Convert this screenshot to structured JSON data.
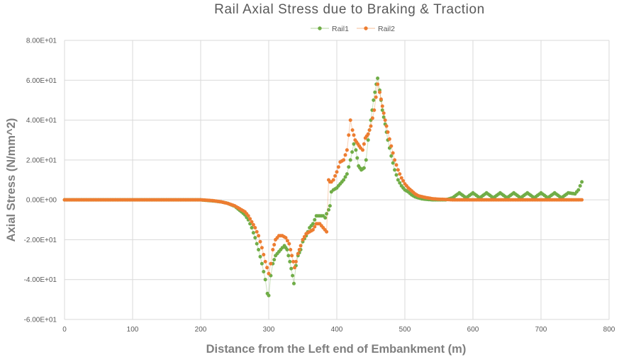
{
  "chart_data": {
    "type": "scatter",
    "title": "Rail Axial Stress due to Braking & Traction",
    "xlabel": "Distance from the Left end of Embankment (m)",
    "ylabel": "Axial Stress (N/mm^2)",
    "xlim": [
      0,
      800
    ],
    "ylim": [
      -60,
      80
    ],
    "xticks": [
      0,
      100,
      200,
      300,
      400,
      500,
      600,
      700,
      800
    ],
    "xtick_labels": [
      "0",
      "100",
      "200",
      "300",
      "400",
      "500",
      "600",
      "700",
      "800"
    ],
    "yticks": [
      -60,
      -40,
      -20,
      0,
      20,
      40,
      60,
      80
    ],
    "ytick_labels": [
      "-6.00E+01",
      "-4.00E+01",
      "-2.00E+01",
      "0.00E+00",
      "2.00E+01",
      "4.00E+01",
      "6.00E+01",
      "8.00E+01"
    ],
    "grid": "vertical and horizontal",
    "legend_position": "top-center",
    "series": [
      {
        "name": "Rail1",
        "color": "#70ad47",
        "points": [
          [
            0,
            0
          ],
          [
            20,
            0
          ],
          [
            40,
            0
          ],
          [
            60,
            0
          ],
          [
            80,
            0
          ],
          [
            100,
            0
          ],
          [
            120,
            0
          ],
          [
            140,
            0
          ],
          [
            160,
            0
          ],
          [
            180,
            0
          ],
          [
            200,
            0
          ],
          [
            210,
            -0.3
          ],
          [
            220,
            -0.6
          ],
          [
            230,
            -1
          ],
          [
            240,
            -1.8
          ],
          [
            250,
            -3.2
          ],
          [
            260,
            -6
          ],
          [
            265,
            -7.5
          ],
          [
            270,
            -10
          ],
          [
            275,
            -14
          ],
          [
            280,
            -19
          ],
          [
            285,
            -25
          ],
          [
            290,
            -32
          ],
          [
            295,
            -40
          ],
          [
            298,
            -47
          ],
          [
            300,
            -48
          ],
          [
            303,
            -38
          ],
          [
            306,
            -32
          ],
          [
            310,
            -28
          ],
          [
            315,
            -26
          ],
          [
            320,
            -24
          ],
          [
            323,
            -23
          ],
          [
            327,
            -25
          ],
          [
            331,
            -31
          ],
          [
            335,
            -38
          ],
          [
            337,
            -42
          ],
          [
            340,
            -33
          ],
          [
            343,
            -28
          ],
          [
            347,
            -25
          ],
          [
            350,
            -21
          ],
          [
            355,
            -18
          ],
          [
            360,
            -14
          ],
          [
            365,
            -12
          ],
          [
            370,
            -8
          ],
          [
            375,
            -8
          ],
          [
            380,
            -8
          ],
          [
            383,
            -9
          ],
          [
            385,
            -7
          ],
          [
            388,
            -5
          ],
          [
            390,
            -3
          ],
          [
            392,
            4
          ],
          [
            395,
            5
          ],
          [
            400,
            6
          ],
          [
            405,
            8
          ],
          [
            410,
            10
          ],
          [
            415,
            13
          ],
          [
            420,
            20
          ],
          [
            425,
            28
          ],
          [
            428,
            25
          ],
          [
            432,
            17
          ],
          [
            436,
            15
          ],
          [
            440,
            16
          ],
          [
            443,
            20
          ],
          [
            446,
            30
          ],
          [
            450,
            40
          ],
          [
            454,
            50
          ],
          [
            458,
            58
          ],
          [
            460,
            61
          ],
          [
            463,
            55
          ],
          [
            467,
            45
          ],
          [
            471,
            38
          ],
          [
            475,
            30
          ],
          [
            480,
            22
          ],
          [
            485,
            15
          ],
          [
            490,
            10
          ],
          [
            495,
            7
          ],
          [
            500,
            5
          ],
          [
            505,
            4
          ],
          [
            510,
            2.5
          ],
          [
            515,
            1.5
          ],
          [
            520,
            1
          ],
          [
            525,
            0.5
          ],
          [
            530,
            0.3
          ],
          [
            540,
            0
          ],
          [
            550,
            0
          ],
          [
            560,
            0
          ],
          [
            570,
            1
          ],
          [
            580,
            3.5
          ],
          [
            590,
            1
          ],
          [
            600,
            3.5
          ],
          [
            610,
            1
          ],
          [
            620,
            3.5
          ],
          [
            630,
            1
          ],
          [
            640,
            3.5
          ],
          [
            650,
            1
          ],
          [
            660,
            3.5
          ],
          [
            670,
            1
          ],
          [
            680,
            3.5
          ],
          [
            690,
            1
          ],
          [
            700,
            3.5
          ],
          [
            710,
            1
          ],
          [
            720,
            3.5
          ],
          [
            730,
            1
          ],
          [
            740,
            3.5
          ],
          [
            750,
            3
          ],
          [
            755,
            5
          ],
          [
            760,
            9
          ]
        ]
      },
      {
        "name": "Rail2",
        "color": "#ed7d31",
        "points": [
          [
            0,
            0
          ],
          [
            20,
            0
          ],
          [
            40,
            0
          ],
          [
            60,
            0
          ],
          [
            80,
            0
          ],
          [
            100,
            0
          ],
          [
            120,
            0
          ],
          [
            140,
            0
          ],
          [
            160,
            0
          ],
          [
            180,
            0
          ],
          [
            200,
            0
          ],
          [
            210,
            -0.2
          ],
          [
            220,
            -0.5
          ],
          [
            230,
            -1
          ],
          [
            240,
            -1.8
          ],
          [
            250,
            -3
          ],
          [
            260,
            -5
          ],
          [
            265,
            -6
          ],
          [
            270,
            -8
          ],
          [
            275,
            -11
          ],
          [
            280,
            -14
          ],
          [
            285,
            -18
          ],
          [
            290,
            -24
          ],
          [
            295,
            -31
          ],
          [
            300,
            -37
          ],
          [
            303,
            -32
          ],
          [
            306,
            -25
          ],
          [
            310,
            -20
          ],
          [
            315,
            -18
          ],
          [
            320,
            -18
          ],
          [
            325,
            -19
          ],
          [
            330,
            -22
          ],
          [
            334,
            -28
          ],
          [
            338,
            -34
          ],
          [
            340,
            -31
          ],
          [
            343,
            -27
          ],
          [
            347,
            -23
          ],
          [
            350,
            -20
          ],
          [
            355,
            -17
          ],
          [
            360,
            -16
          ],
          [
            365,
            -15
          ],
          [
            370,
            -12
          ],
          [
            375,
            -12
          ],
          [
            380,
            -14
          ],
          [
            385,
            -16
          ],
          [
            388,
            10
          ],
          [
            390,
            9
          ],
          [
            392,
            9
          ],
          [
            395,
            10
          ],
          [
            400,
            14
          ],
          [
            405,
            19
          ],
          [
            410,
            20
          ],
          [
            415,
            25
          ],
          [
            420,
            40
          ],
          [
            423,
            35
          ],
          [
            427,
            30
          ],
          [
            431,
            28
          ],
          [
            435,
            26
          ],
          [
            438,
            25
          ],
          [
            442,
            31
          ],
          [
            446,
            33
          ],
          [
            450,
            37
          ],
          [
            455,
            45
          ],
          [
            460,
            58
          ],
          [
            463,
            54
          ],
          [
            467,
            47
          ],
          [
            471,
            40
          ],
          [
            475,
            34
          ],
          [
            480,
            27
          ],
          [
            485,
            20
          ],
          [
            490,
            15
          ],
          [
            495,
            11
          ],
          [
            500,
            8
          ],
          [
            505,
            6
          ],
          [
            510,
            4.5
          ],
          [
            515,
            3
          ],
          [
            520,
            2
          ],
          [
            530,
            1.2
          ],
          [
            540,
            0.6
          ],
          [
            550,
            0.3
          ],
          [
            560,
            0.2
          ],
          [
            570,
            0
          ],
          [
            580,
            0
          ],
          [
            600,
            0
          ],
          [
            620,
            0
          ],
          [
            640,
            0
          ],
          [
            660,
            0
          ],
          [
            680,
            0
          ],
          [
            700,
            0
          ],
          [
            720,
            0
          ],
          [
            740,
            0
          ],
          [
            760,
            0
          ]
        ]
      }
    ]
  }
}
